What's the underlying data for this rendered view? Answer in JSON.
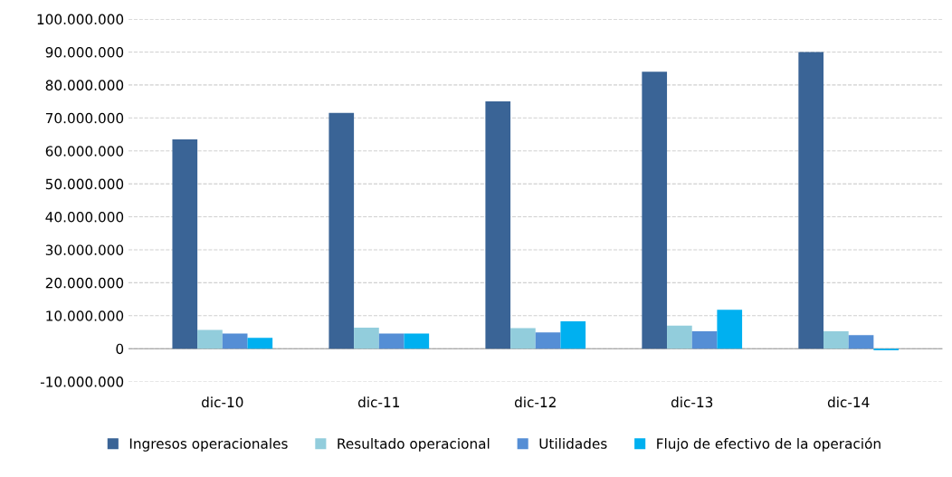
{
  "chart_data": {
    "type": "bar",
    "categories": [
      "dic-10",
      "dic-11",
      "dic-12",
      "dic-13",
      "dic-14"
    ],
    "series": [
      {
        "name": "Ingresos operacionales",
        "color": "#3a6496",
        "values": [
          63500000,
          71500000,
          75000000,
          84000000,
          90000000
        ]
      },
      {
        "name": "Resultado operacional",
        "color": "#92cddc",
        "values": [
          5700000,
          6400000,
          6200000,
          7000000,
          5300000
        ]
      },
      {
        "name": "Utilidades",
        "color": "#558ed5",
        "values": [
          4600000,
          4600000,
          4900000,
          5300000,
          4100000
        ]
      },
      {
        "name": "Flujo de efectivo de la operación",
        "color": "#00b0f0",
        "values": [
          3300000,
          4600000,
          8300000,
          11800000,
          -500000
        ]
      }
    ],
    "ylim": [
      -10000000,
      100000000
    ],
    "yticks": [
      {
        "value": -10000000,
        "label": "-10.000.000"
      },
      {
        "value": 0,
        "label": "0"
      },
      {
        "value": 10000000,
        "label": "10.000.000"
      },
      {
        "value": 20000000,
        "label": "20.000.000"
      },
      {
        "value": 30000000,
        "label": "30.000.000"
      },
      {
        "value": 40000000,
        "label": "40.000.000"
      },
      {
        "value": 50000000,
        "label": "50.000.000"
      },
      {
        "value": 60000000,
        "label": "60.000.000"
      },
      {
        "value": 70000000,
        "label": "70.000.000"
      },
      {
        "value": 80000000,
        "label": "80.000.000"
      },
      {
        "value": 90000000,
        "label": "90.000.000"
      },
      {
        "value": 100000000,
        "label": "100.000.000"
      }
    ],
    "grid": "y",
    "legend": "bottom"
  }
}
